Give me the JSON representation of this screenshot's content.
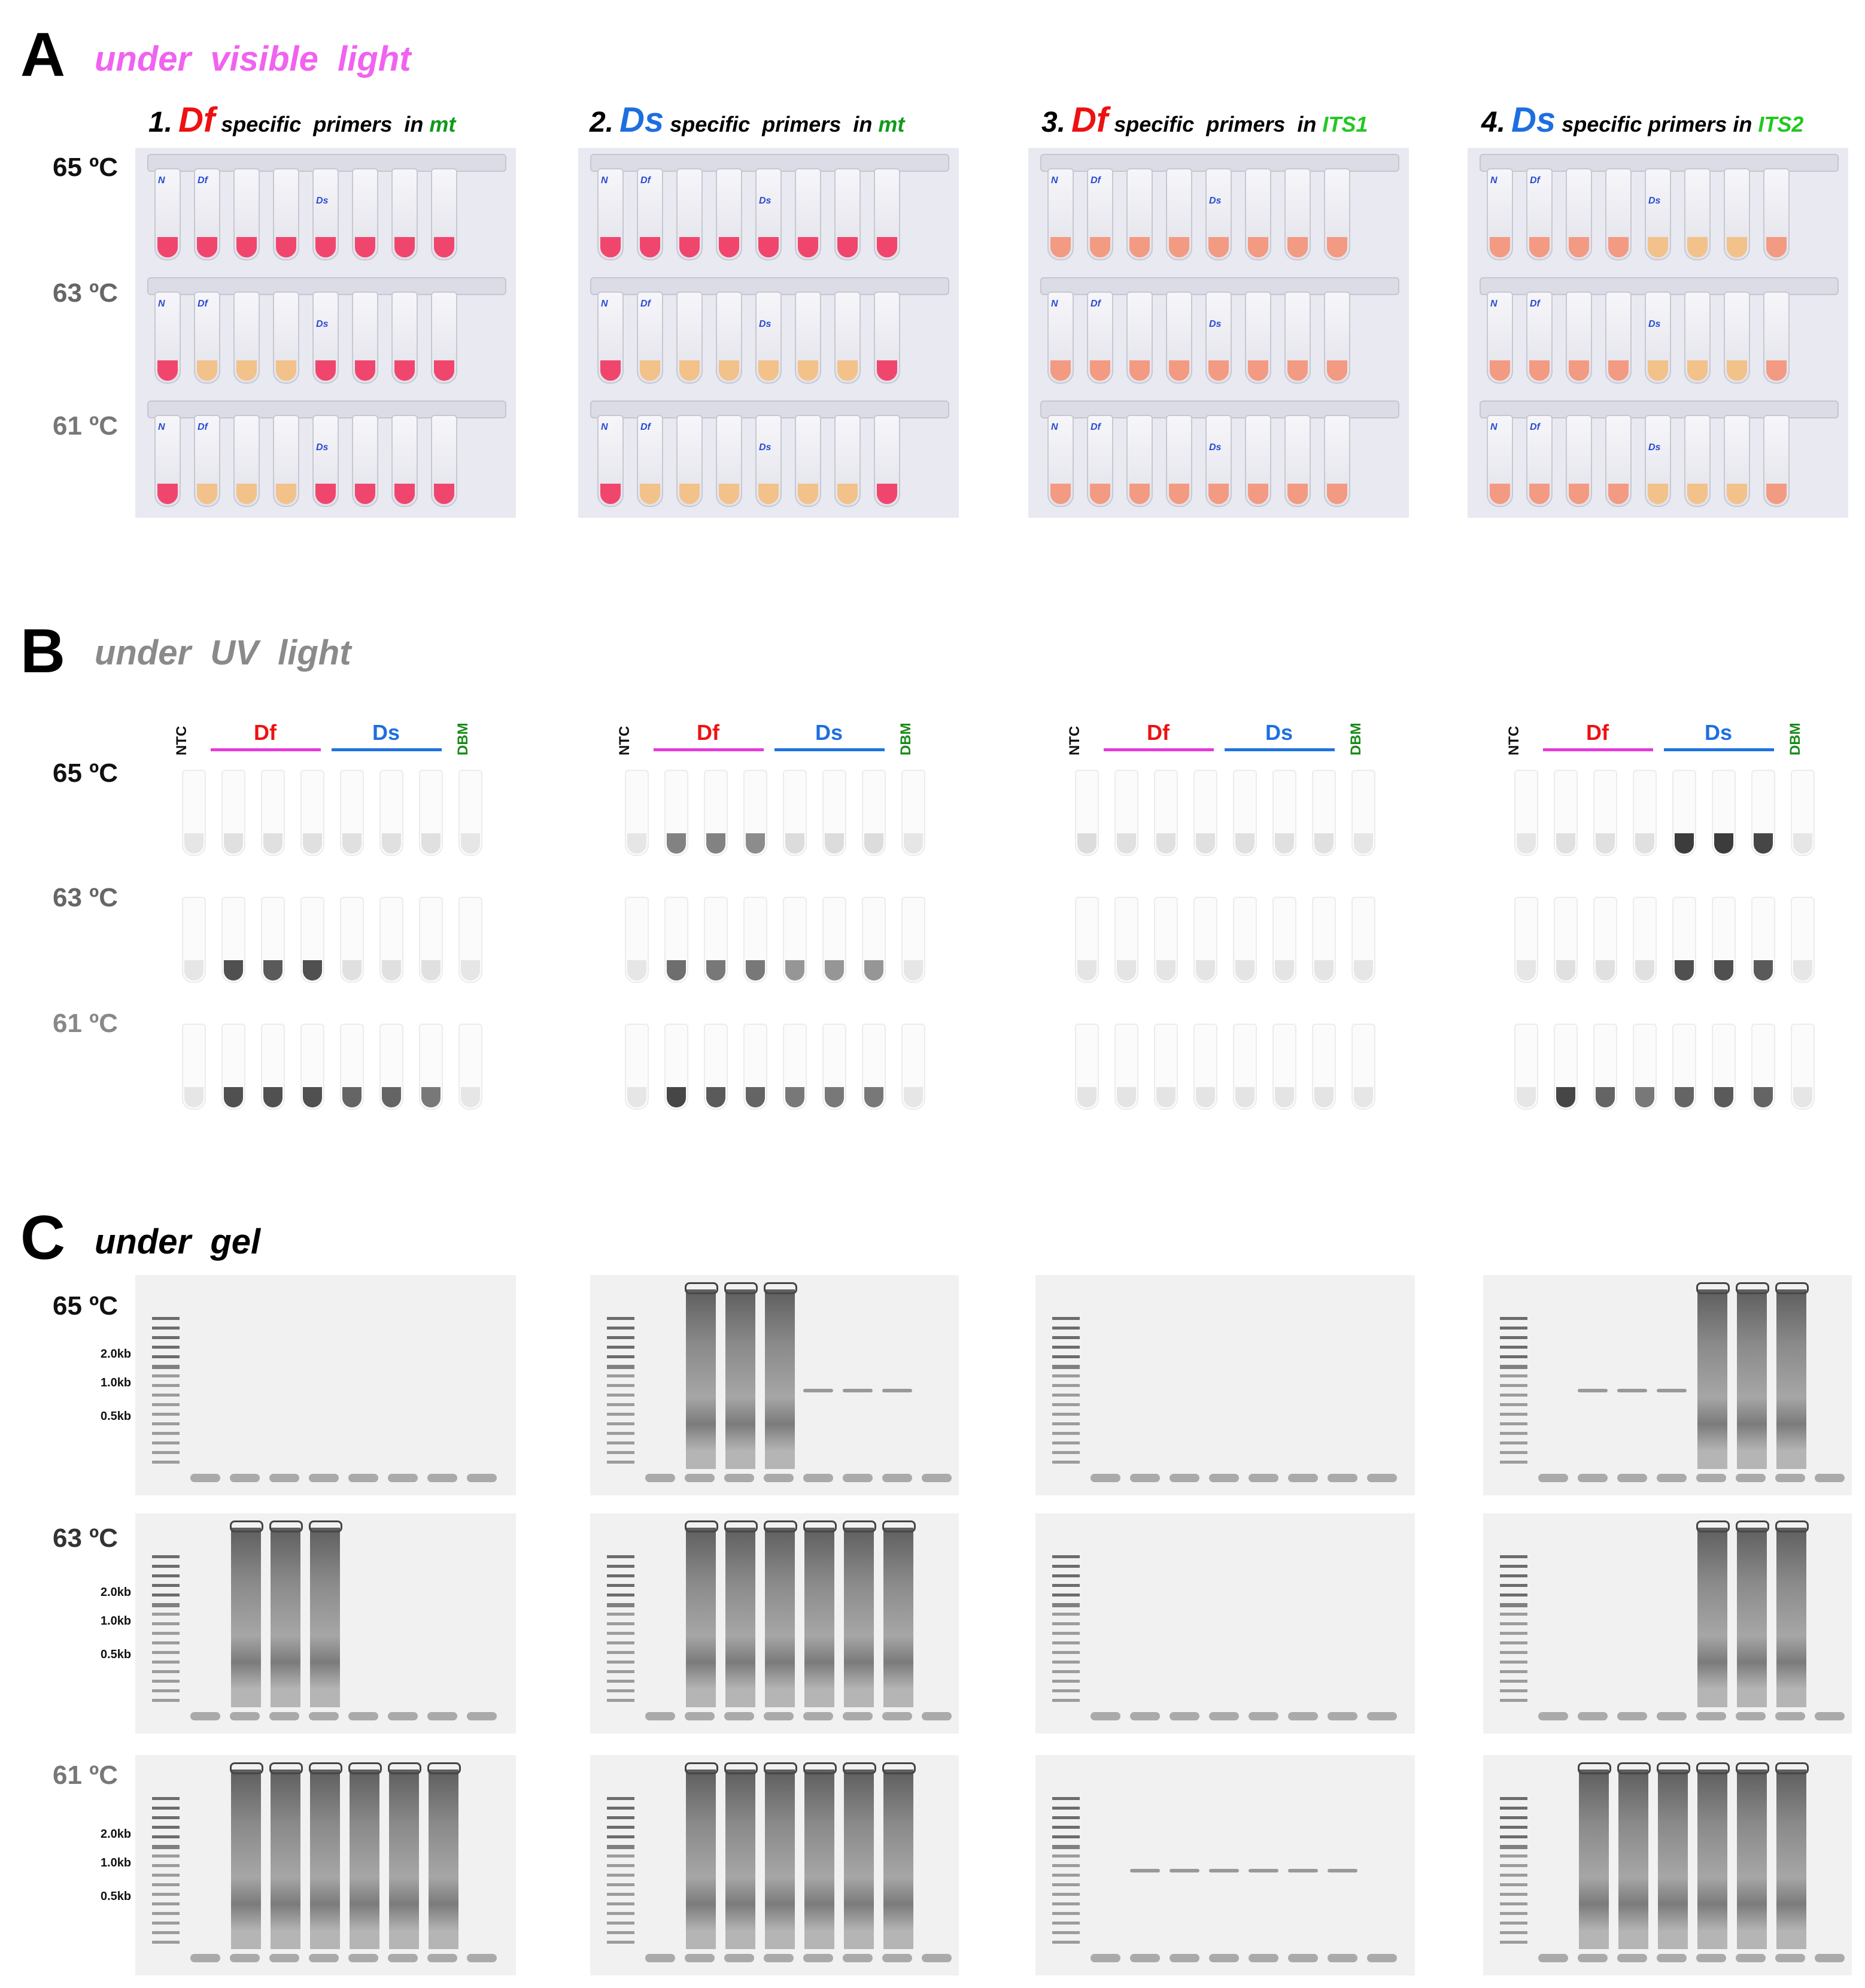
{
  "panels": {
    "A": {
      "letter": "A",
      "title": "under  visible  light"
    },
    "B": {
      "letter": "B",
      "title": "under  UV  light"
    },
    "C": {
      "letter": "C",
      "title": "under  gel"
    }
  },
  "temperatures": [
    "65 ºC",
    "63 ºC",
    "61 ºC"
  ],
  "columns": [
    {
      "num": "1.",
      "species": "Df",
      "mid": " specific  primers  in ",
      "target": "mt"
    },
    {
      "num": "2.",
      "species": "Ds",
      "mid": " specific  primers  in ",
      "target": "mt"
    },
    {
      "num": "3.",
      "species": "Df",
      "mid": " specific  primers  in ",
      "target": "ITS1"
    },
    {
      "num": "4.",
      "species": "Ds",
      "mid": " specific primers in ",
      "target": "ITS2"
    }
  ],
  "uv_headers": {
    "ntc": "NTC",
    "df": "Df",
    "ds": "Ds",
    "dbm": "DBM"
  },
  "size_markers": [
    "2.0kb",
    "1.0kb",
    "0.5kb"
  ],
  "tube_labels": {
    "ntc": "N",
    "df": "Df",
    "ds": "Ds"
  },
  "colors": {
    "title_pink": "#f062f0",
    "title_grey": "#8a8a8a",
    "df_red": "#ee1111",
    "ds_blue": "#1d6fe0",
    "target_green_mt": "#0f9a1a",
    "target_green_its": "#22c822",
    "line_magenta": "#e53ad8",
    "line_blue": "#1f74e0",
    "dbm_green": "#1a8a1a",
    "pink_positive": "#f0466e",
    "orange_negative": "#f2c28a",
    "salmon": "#f39a82"
  }
}
